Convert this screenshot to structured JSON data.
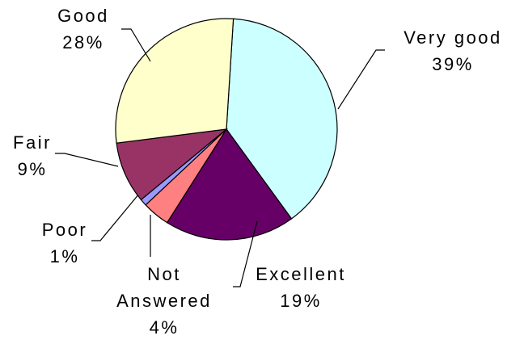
{
  "chart_data": {
    "type": "pie",
    "categories": [
      "Very good",
      "Excellent",
      "Not Answered",
      "Poor",
      "Fair",
      "Good"
    ],
    "values": [
      39,
      19,
      4,
      1,
      9,
      28
    ],
    "value_labels": [
      "39%",
      "19%",
      "4%",
      "1%",
      "9%",
      "28%"
    ],
    "colors": [
      "#ccffff",
      "#660066",
      "#ff8080",
      "#9999ff",
      "#993366",
      "#ffffcc"
    ]
  }
}
